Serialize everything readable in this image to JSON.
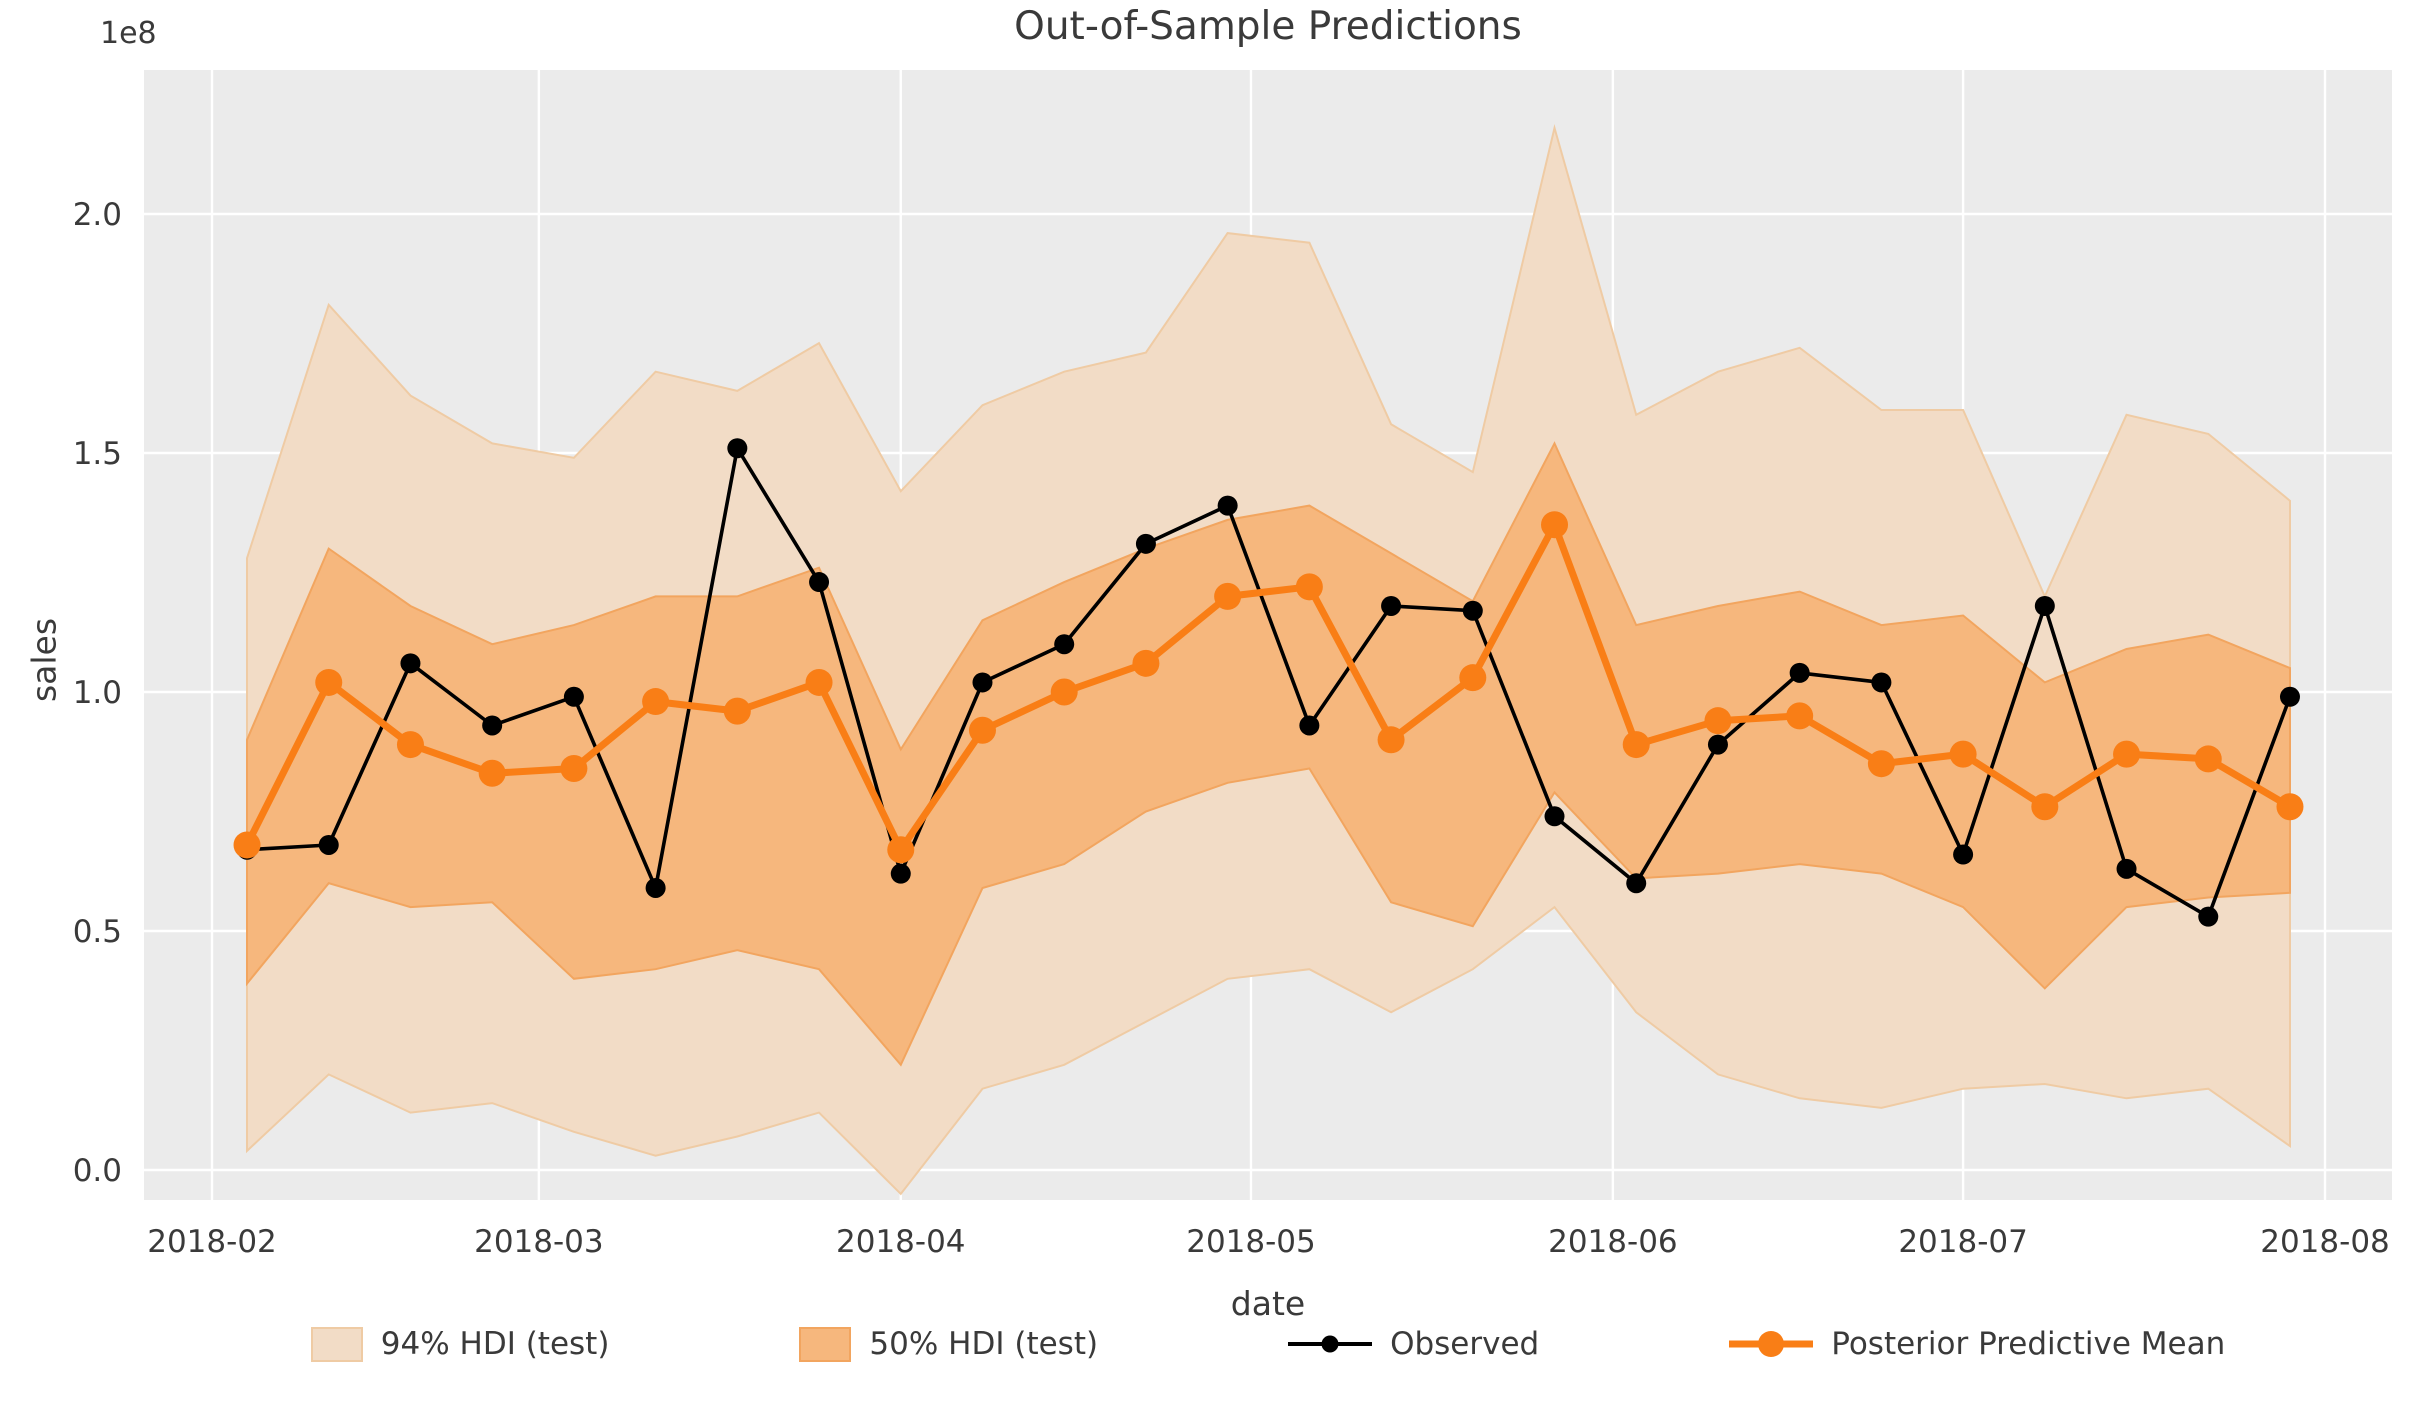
{
  "title": "Out-of-Sample Predictions",
  "axes": {
    "x_label": "date",
    "y_label": "sales",
    "offset_text": "1e8"
  },
  "legend": {
    "items": [
      {
        "label": "94% HDI (test)",
        "type": "patch"
      },
      {
        "label": "50% HDI (test)",
        "type": "patch"
      },
      {
        "label": "Observed",
        "type": "line-marker"
      },
      {
        "label": "Posterior Predictive Mean",
        "type": "line-marker"
      }
    ]
  },
  "colors": {
    "figure_bg": "#ffffff",
    "plot_bg": "#ebebeb",
    "grid": "#ffffff",
    "text": "#3a3a3a",
    "observed": "#000000",
    "mean": "#f97e16",
    "hdi94_fill": "#f2dcc6",
    "hdi94_edge": "#efcba4",
    "hdi50_fill": "#f6b77d",
    "hdi50_edge": "#f2a55f"
  },
  "chart_data": {
    "type": "line",
    "title": "Out-of-Sample Predictions",
    "xlabel": "date",
    "ylabel": "sales",
    "y_offset_text": "1e8",
    "grid": true,
    "legend_position": "bottom",
    "ylim": [
      -0.06,
      2.3
    ],
    "y_ticks": [
      {
        "label": "0.0",
        "value": 0.0
      },
      {
        "label": "0.5",
        "value": 0.5
      },
      {
        "label": "1.0",
        "value": 1.0
      },
      {
        "label": "1.5",
        "value": 1.5
      },
      {
        "label": "2.0",
        "value": 2.0
      }
    ],
    "x_ticks": [
      {
        "label": "2018-02",
        "date": "2018-02-01"
      },
      {
        "label": "2018-03",
        "date": "2018-03-01"
      },
      {
        "label": "2018-04",
        "date": "2018-04-01"
      },
      {
        "label": "2018-05",
        "date": "2018-05-01"
      },
      {
        "label": "2018-06",
        "date": "2018-06-01"
      },
      {
        "label": "2018-07",
        "date": "2018-07-01"
      },
      {
        "label": "2018-08",
        "date": "2018-08-01"
      }
    ],
    "x": [
      "2018-02-04",
      "2018-02-11",
      "2018-02-18",
      "2018-02-25",
      "2018-03-04",
      "2018-03-11",
      "2018-03-18",
      "2018-03-25",
      "2018-04-01",
      "2018-04-08",
      "2018-04-15",
      "2018-04-22",
      "2018-04-29",
      "2018-05-06",
      "2018-05-13",
      "2018-05-20",
      "2018-05-27",
      "2018-06-03",
      "2018-06-10",
      "2018-06-17",
      "2018-06-24",
      "2018-07-01",
      "2018-07-08",
      "2018-07-15",
      "2018-07-22",
      "2018-07-29"
    ],
    "units": "1e8 sales",
    "series": [
      {
        "name": "Observed",
        "values": [
          0.67,
          0.68,
          1.06,
          0.93,
          0.99,
          0.59,
          1.51,
          1.23,
          0.62,
          1.02,
          1.1,
          1.31,
          1.39,
          0.93,
          1.18,
          1.17,
          0.74,
          0.6,
          0.89,
          1.04,
          1.02,
          0.66,
          1.18,
          0.63,
          0.53,
          0.99
        ]
      },
      {
        "name": "Posterior Predictive Mean",
        "values": [
          0.68,
          1.02,
          0.89,
          0.83,
          0.84,
          0.98,
          0.96,
          1.02,
          0.67,
          0.92,
          1.0,
          1.06,
          1.2,
          1.22,
          0.9,
          1.03,
          1.35,
          0.89,
          0.94,
          0.95,
          0.85,
          0.87,
          0.76,
          0.87,
          0.86,
          0.76
        ]
      },
      {
        "name": "50% HDI (test)",
        "lower": [
          0.39,
          0.6,
          0.55,
          0.56,
          0.4,
          0.42,
          0.46,
          0.42,
          0.22,
          0.59,
          0.64,
          0.75,
          0.81,
          0.84,
          0.56,
          0.51,
          0.79,
          0.61,
          0.62,
          0.64,
          0.62,
          0.55,
          0.38,
          0.55,
          0.57,
          0.58
        ],
        "upper": [
          0.9,
          1.3,
          1.18,
          1.1,
          1.14,
          1.2,
          1.2,
          1.26,
          0.88,
          1.15,
          1.23,
          1.3,
          1.36,
          1.39,
          1.29,
          1.19,
          1.52,
          1.14,
          1.18,
          1.21,
          1.14,
          1.16,
          1.02,
          1.09,
          1.12,
          1.05
        ]
      },
      {
        "name": "94% HDI (test)",
        "lower": [
          0.04,
          0.2,
          0.12,
          0.14,
          0.08,
          0.03,
          0.07,
          0.12,
          -0.05,
          0.17,
          0.22,
          0.31,
          0.4,
          0.42,
          0.33,
          0.42,
          0.55,
          0.33,
          0.2,
          0.15,
          0.13,
          0.17,
          0.18,
          0.15,
          0.17,
          0.05
        ],
        "upper": [
          1.28,
          1.81,
          1.62,
          1.52,
          1.49,
          1.67,
          1.63,
          1.73,
          1.42,
          1.6,
          1.67,
          1.71,
          1.96,
          1.94,
          1.56,
          1.46,
          2.18,
          1.58,
          1.67,
          1.72,
          1.59,
          1.59,
          1.2,
          1.58,
          1.54,
          1.4
        ]
      }
    ]
  }
}
